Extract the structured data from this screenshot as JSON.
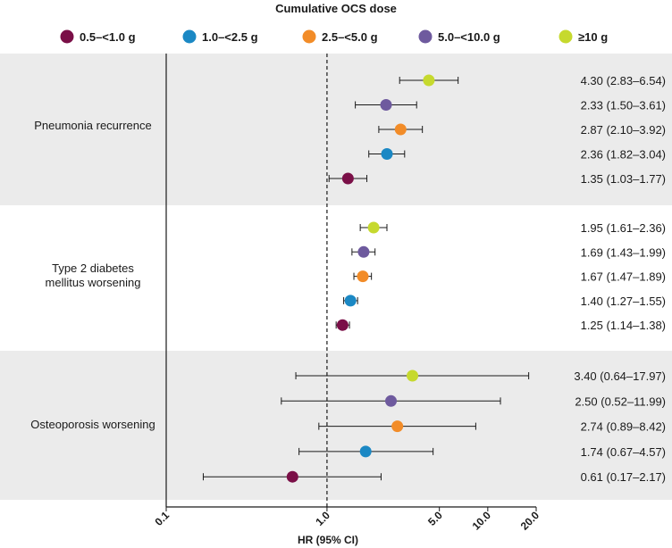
{
  "chart_data": {
    "type": "forest",
    "title": "Cumulative OCS dose",
    "xlabel": "HR (95% CI)",
    "xscale": "log",
    "xlim": [
      0.1,
      20.0
    ],
    "reference_line": 1.0,
    "ticks": [
      {
        "value": 0.1,
        "label": "0.1"
      },
      {
        "value": 1.0,
        "label": "1.0"
      },
      {
        "value": 5.0,
        "label": "5.0"
      },
      {
        "value": 10.0,
        "label": "10.0"
      },
      {
        "value": 20.0,
        "label": "20.0"
      }
    ],
    "legend": [
      {
        "label": "0.5–<1.0 g",
        "color": "#7a0f47"
      },
      {
        "label": "1.0–<2.5 g",
        "color": "#1b88c4"
      },
      {
        "label": "2.5–<5.0 g",
        "color": "#f28c28"
      },
      {
        "label": "5.0–<10.0 g",
        "color": "#6e5a9e"
      },
      {
        "label": "≥10 g",
        "color": "#c6d92e"
      }
    ],
    "groups": [
      {
        "label": "Pneumonia recurrence",
        "rows": [
          {
            "dose": "≥10 g",
            "color": "#c6d92e",
            "hr": 4.3,
            "lo": 2.83,
            "hi": 6.54,
            "text": "4.30 (2.83–6.54)"
          },
          {
            "dose": "5.0–<10.0 g",
            "color": "#6e5a9e",
            "hr": 2.33,
            "lo": 1.5,
            "hi": 3.61,
            "text": "2.33 (1.50–3.61)"
          },
          {
            "dose": "2.5–<5.0 g",
            "color": "#f28c28",
            "hr": 2.87,
            "lo": 2.1,
            "hi": 3.92,
            "text": "2.87 (2.10–3.92)"
          },
          {
            "dose": "1.0–<2.5 g",
            "color": "#1b88c4",
            "hr": 2.36,
            "lo": 1.82,
            "hi": 3.04,
            "text": "2.36 (1.82–3.04)"
          },
          {
            "dose": "0.5–<1.0 g",
            "color": "#7a0f47",
            "hr": 1.35,
            "lo": 1.03,
            "hi": 1.77,
            "text": "1.35 (1.03–1.77)"
          }
        ]
      },
      {
        "label": "Type 2 diabetes\nmellitus worsening",
        "rows": [
          {
            "dose": "≥10 g",
            "color": "#c6d92e",
            "hr": 1.95,
            "lo": 1.61,
            "hi": 2.36,
            "text": "1.95 (1.61–2.36)"
          },
          {
            "dose": "5.0–<10.0 g",
            "color": "#6e5a9e",
            "hr": 1.69,
            "lo": 1.43,
            "hi": 1.99,
            "text": "1.69 (1.43–1.99)"
          },
          {
            "dose": "2.5–<5.0 g",
            "color": "#f28c28",
            "hr": 1.67,
            "lo": 1.47,
            "hi": 1.89,
            "text": "1.67 (1.47–1.89)"
          },
          {
            "dose": "1.0–<2.5 g",
            "color": "#1b88c4",
            "hr": 1.4,
            "lo": 1.27,
            "hi": 1.55,
            "text": "1.40 (1.27–1.55)"
          },
          {
            "dose": "0.5–<1.0 g",
            "color": "#7a0f47",
            "hr": 1.25,
            "lo": 1.14,
            "hi": 1.38,
            "text": "1.25 (1.14–1.38)"
          }
        ]
      },
      {
        "label": "Osteoporosis worsening",
        "rows": [
          {
            "dose": "≥10 g",
            "color": "#c6d92e",
            "hr": 3.4,
            "lo": 0.64,
            "hi": 17.97,
            "text": "3.40 (0.64–17.97)"
          },
          {
            "dose": "5.0–<10.0 g",
            "color": "#6e5a9e",
            "hr": 2.5,
            "lo": 0.52,
            "hi": 11.99,
            "text": "2.50 (0.52–11.99)"
          },
          {
            "dose": "2.5–<5.0 g",
            "color": "#f28c28",
            "hr": 2.74,
            "lo": 0.89,
            "hi": 8.42,
            "text": "2.74 (0.89–8.42)"
          },
          {
            "dose": "1.0–<2.5 g",
            "color": "#1b88c4",
            "hr": 1.74,
            "lo": 0.67,
            "hi": 4.57,
            "text": "1.74 (0.67–4.57)"
          },
          {
            "dose": "0.5–<1.0 g",
            "color": "#7a0f47",
            "hr": 0.61,
            "lo": 0.17,
            "hi": 2.17,
            "text": "0.61 (0.17–2.17)"
          }
        ]
      }
    ]
  }
}
